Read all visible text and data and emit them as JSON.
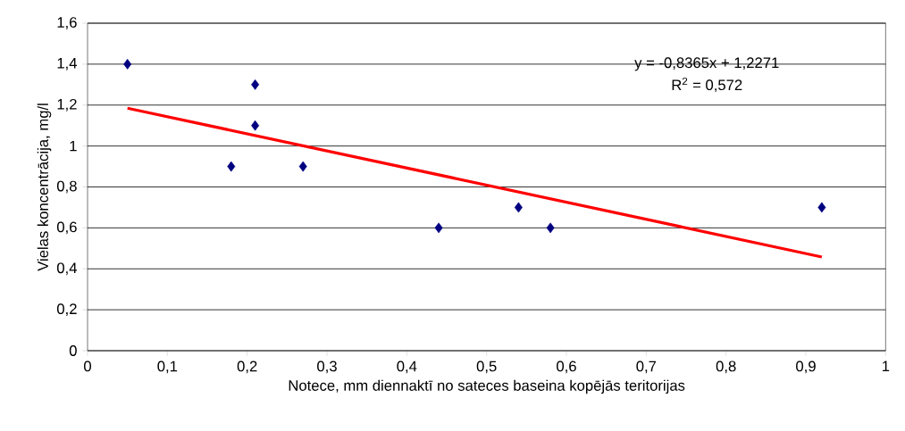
{
  "chart_data": {
    "type": "scatter",
    "xlabel": "Notece, mm diennaktī no sateces baseina kopējās teritorijas",
    "ylabel": "Vielas koncentrācija, mg/l",
    "annotations": [
      "y = -0,8365x + 1,2271",
      "R$^{2}$ = 0,572"
    ],
    "xlim": [
      0,
      1
    ],
    "ylim": [
      0,
      1.6
    ],
    "xticks": [
      0,
      {
        "value": 0.1,
        "label": "0,1"
      },
      {
        "value": 0.2,
        "label": "0,2"
      },
      {
        "value": 0.3,
        "label": "0,3"
      },
      {
        "value": 0.4,
        "label": "0,4"
      },
      {
        "value": 0.5,
        "label": "0,5"
      },
      {
        "value": 0.6,
        "label": "0,6"
      },
      {
        "value": 0.7,
        "label": "0,7"
      },
      {
        "value": 0.8,
        "label": "0,8"
      },
      {
        "value": 0.9,
        "label": "0,9"
      },
      1
    ],
    "yticks": [
      0,
      {
        "value": 0.2,
        "label": "0,2"
      },
      {
        "value": 0.4,
        "label": "0,4"
      },
      {
        "value": 0.6,
        "label": "0,6"
      },
      {
        "value": 0.8,
        "label": "0,8"
      },
      1,
      {
        "value": 1.2,
        "label": "1,2"
      },
      {
        "value": 1.4,
        "label": "1,4"
      },
      {
        "value": 1.6,
        "label": "1,6"
      }
    ],
    "grid": "y",
    "series": [
      {
        "color": "#000080",
        "marker": "diamond",
        "x": [
          0.05,
          0.18,
          0.21,
          0.21,
          0.27,
          0.44,
          0.54,
          0.58,
          0.92
        ],
        "values": [
          1.4,
          0.9,
          1.3,
          1.1,
          0.9,
          0.6,
          0.7,
          0.6,
          0.7
        ]
      },
      {
        "type": "line",
        "color": "#ff0000",
        "marker": "none",
        "line_style": "solid",
        "x": [
          0.05,
          0.92
        ],
        "values": [
          1.185,
          0.458
        ]
      }
    ]
  }
}
